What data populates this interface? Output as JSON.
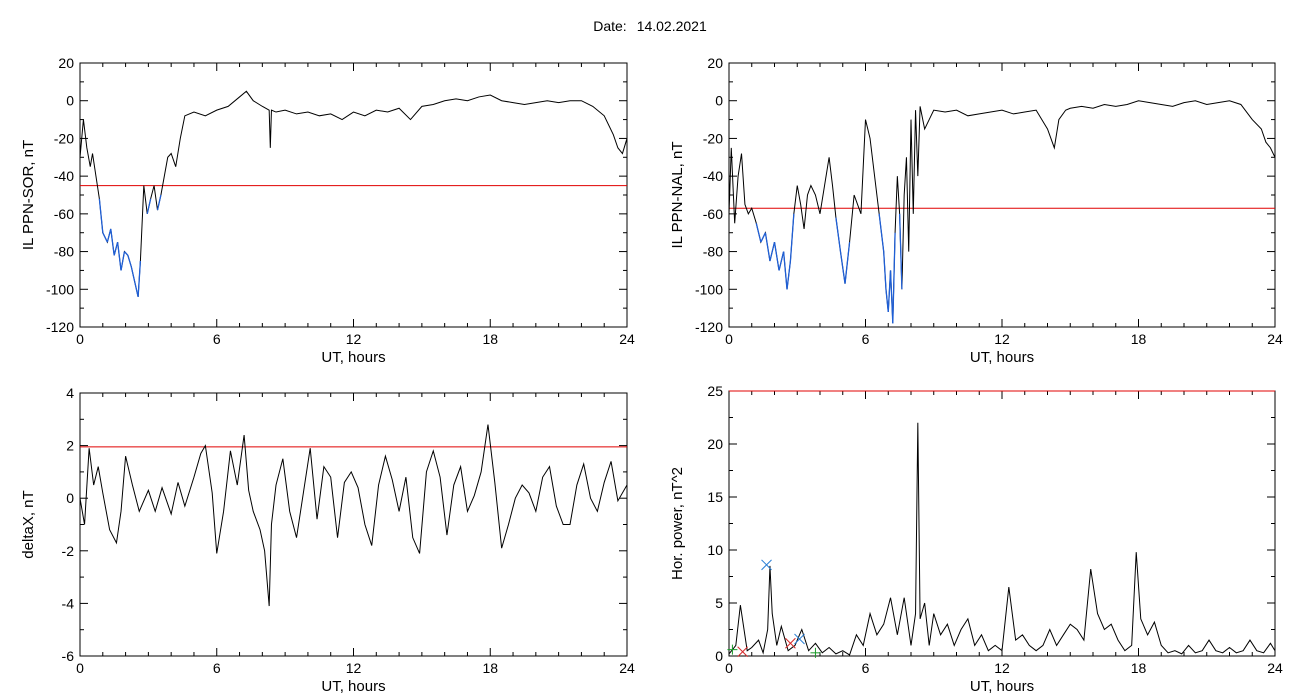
{
  "header": {
    "date_label": "Date:",
    "date_value": "14.02.2021"
  },
  "chart_data": [
    {
      "type": "line",
      "id": "sor",
      "ylabel": "IL PPN-SOR, nT",
      "xlabel": "UT, hours",
      "xlim": [
        0,
        24
      ],
      "ylim": [
        -120,
        20
      ],
      "xticks": [
        0,
        6,
        12,
        18,
        24
      ],
      "yticks": [
        -120,
        -100,
        -80,
        -60,
        -40,
        -20,
        0,
        20
      ],
      "threshold": {
        "value": -45,
        "color": "#e00000"
      },
      "series_color": "#000000",
      "highlight_color": "#1f5fd6",
      "series": [
        {
          "x": [
            0,
            0.15,
            0.3,
            0.45,
            0.55,
            0.7,
            0.85,
            1.0,
            1.2,
            1.35,
            1.5,
            1.65,
            1.8,
            1.95,
            2.1,
            2.25,
            2.4,
            2.55,
            2.65,
            2.8,
            2.95,
            3.1,
            3.25,
            3.4,
            3.55,
            3.7,
            3.85,
            4.0,
            4.2,
            4.4,
            4.6,
            5.0,
            5.5,
            6.0,
            6.5,
            7.0,
            7.3,
            7.6,
            8.0,
            8.3,
            8.35,
            8.4,
            8.6,
            9.0,
            9.5,
            10.0,
            10.5,
            11.0,
            11.5,
            12.0,
            12.5,
            13.0,
            13.5,
            14.0,
            14.5,
            15.0,
            15.5,
            16.0,
            16.5,
            17.0,
            17.5,
            18.0,
            18.5,
            19.0,
            19.5,
            20.0,
            20.5,
            21.0,
            21.5,
            22.0,
            22.5,
            23.0,
            23.4,
            23.6,
            23.8,
            24.0
          ],
          "values": [
            -30,
            -10,
            -25,
            -35,
            -28,
            -40,
            -52,
            -70,
            -75,
            -68,
            -82,
            -75,
            -90,
            -80,
            -82,
            -88,
            -96,
            -104,
            -85,
            -45,
            -60,
            -52,
            -45,
            -58,
            -50,
            -40,
            -30,
            -28,
            -35,
            -20,
            -8,
            -6,
            -8,
            -5,
            -3,
            2,
            5,
            0,
            -3,
            -5,
            -25,
            -5,
            -6,
            -5,
            -7,
            -6,
            -8,
            -7,
            -10,
            -6,
            -8,
            -5,
            -6,
            -4,
            -10,
            -3,
            -2,
            0,
            1,
            0,
            2,
            3,
            0,
            -1,
            -2,
            -1,
            0,
            -1,
            0,
            0,
            -3,
            -8,
            -18,
            -25,
            -28,
            -20
          ]
        }
      ]
    },
    {
      "type": "line",
      "id": "nal",
      "ylabel": "IL PPN-NAL, nT",
      "xlabel": "UT, hours",
      "xlim": [
        0,
        24
      ],
      "ylim": [
        -120,
        20
      ],
      "xticks": [
        0,
        6,
        12,
        18,
        24
      ],
      "yticks": [
        -120,
        -100,
        -80,
        -60,
        -40,
        -20,
        0,
        20
      ],
      "threshold": {
        "value": -57,
        "color": "#e00000"
      },
      "series_color": "#000000",
      "highlight_color": "#1f5fd6",
      "series": [
        {
          "x": [
            0,
            0.1,
            0.25,
            0.4,
            0.55,
            0.7,
            0.85,
            1.0,
            1.2,
            1.4,
            1.6,
            1.8,
            2.0,
            2.2,
            2.4,
            2.55,
            2.7,
            2.85,
            3.0,
            3.15,
            3.3,
            3.45,
            3.6,
            3.8,
            4.0,
            4.2,
            4.4,
            4.55,
            4.7,
            4.9,
            5.1,
            5.3,
            5.5,
            5.8,
            6.0,
            6.2,
            6.4,
            6.6,
            6.8,
            6.9,
            7.0,
            7.1,
            7.2,
            7.3,
            7.4,
            7.5,
            7.6,
            7.7,
            7.8,
            7.9,
            8.0,
            8.1,
            8.2,
            8.3,
            8.4,
            8.6,
            8.8,
            9.0,
            9.5,
            10.0,
            10.5,
            11.0,
            11.5,
            12.0,
            12.5,
            13.0,
            13.5,
            14.0,
            14.3,
            14.5,
            14.8,
            15.0,
            15.5,
            16.0,
            16.5,
            17.0,
            17.5,
            18.0,
            18.5,
            19.0,
            19.5,
            20.0,
            20.5,
            21.0,
            21.5,
            22.0,
            22.5,
            23.0,
            23.4,
            23.6,
            23.8,
            24.0
          ],
          "values": [
            -60,
            -25,
            -65,
            -40,
            -28,
            -55,
            -60,
            -57,
            -65,
            -75,
            -70,
            -85,
            -75,
            -90,
            -80,
            -100,
            -85,
            -60,
            -45,
            -55,
            -68,
            -50,
            -45,
            -50,
            -60,
            -45,
            -30,
            -45,
            -62,
            -80,
            -97,
            -75,
            -50,
            -60,
            -10,
            -20,
            -40,
            -60,
            -80,
            -100,
            -112,
            -90,
            -118,
            -70,
            -40,
            -60,
            -100,
            -50,
            -30,
            -80,
            -10,
            -60,
            -5,
            -40,
            -3,
            -15,
            -10,
            -5,
            -6,
            -5,
            -8,
            -7,
            -6,
            -5,
            -7,
            -6,
            -5,
            -15,
            -25,
            -10,
            -5,
            -4,
            -3,
            -4,
            -2,
            -3,
            -2,
            0,
            -1,
            -2,
            -3,
            -1,
            0,
            -2,
            -1,
            0,
            -2,
            -10,
            -15,
            -22,
            -25,
            -30
          ]
        }
      ]
    },
    {
      "type": "line",
      "id": "deltax",
      "ylabel": "deltaX, nT",
      "xlabel": "UT, hours",
      "xlim": [
        0,
        24
      ],
      "ylim": [
        -6,
        4
      ],
      "xticks": [
        0,
        6,
        12,
        18,
        24
      ],
      "yticks": [
        -6,
        -4,
        -2,
        0,
        2,
        4
      ],
      "threshold": {
        "value": 1.95,
        "color": "#e00000"
      },
      "series_color": "#000000",
      "series": [
        {
          "x": [
            0,
            0.2,
            0.4,
            0.6,
            0.8,
            1.0,
            1.3,
            1.6,
            1.8,
            2.0,
            2.3,
            2.6,
            3.0,
            3.3,
            3.6,
            4.0,
            4.3,
            4.6,
            5.0,
            5.3,
            5.5,
            5.8,
            6.0,
            6.3,
            6.6,
            6.9,
            7.2,
            7.4,
            7.6,
            7.9,
            8.1,
            8.3,
            8.4,
            8.6,
            8.9,
            9.2,
            9.5,
            9.8,
            10.1,
            10.4,
            10.7,
            11.0,
            11.3,
            11.6,
            11.9,
            12.2,
            12.5,
            12.8,
            13.1,
            13.4,
            13.7,
            14.0,
            14.3,
            14.6,
            14.9,
            15.2,
            15.5,
            15.8,
            16.1,
            16.4,
            16.7,
            17.0,
            17.3,
            17.6,
            17.9,
            18.2,
            18.5,
            18.8,
            19.1,
            19.4,
            19.7,
            20.0,
            20.3,
            20.6,
            20.9,
            21.2,
            21.5,
            21.8,
            22.1,
            22.4,
            22.7,
            23.0,
            23.3,
            23.6,
            24.0
          ],
          "values": [
            0,
            -1.0,
            1.9,
            0.5,
            1.2,
            0.2,
            -1.2,
            -1.7,
            -0.5,
            1.6,
            0.5,
            -0.5,
            0.3,
            -0.5,
            0.4,
            -0.6,
            0.6,
            -0.3,
            0.8,
            1.7,
            2.0,
            0.2,
            -2.1,
            -0.5,
            1.8,
            0.5,
            2.4,
            0.3,
            -0.5,
            -1.2,
            -2.0,
            -4.1,
            -1.0,
            0.5,
            1.5,
            -0.5,
            -1.5,
            0.2,
            1.9,
            -0.8,
            1.2,
            0.8,
            -1.5,
            0.6,
            1.0,
            0.4,
            -1.0,
            -1.8,
            0.5,
            1.6,
            0.7,
            -0.5,
            0.8,
            -1.5,
            -2.1,
            1.0,
            1.8,
            0.8,
            -1.4,
            0.5,
            1.2,
            -0.5,
            0.1,
            1.0,
            2.8,
            0.6,
            -1.9,
            -1.0,
            0.0,
            0.5,
            0.2,
            -0.5,
            0.8,
            1.2,
            -0.3,
            -1.0,
            -1.0,
            0.5,
            1.3,
            0.0,
            -0.5,
            0.6,
            1.4,
            -0.1,
            0.5
          ]
        }
      ]
    },
    {
      "type": "line",
      "id": "power",
      "ylabel": "Hor. power, nT^2",
      "xlabel": "UT, hours",
      "xlim": [
        0,
        24
      ],
      "ylim": [
        0,
        25
      ],
      "xticks": [
        0,
        6,
        12,
        18,
        24
      ],
      "yticks": [
        0,
        5,
        10,
        15,
        20,
        25
      ],
      "threshold": {
        "value": 25,
        "color": "#e00000"
      },
      "series_color": "#000000",
      "series": [
        {
          "x": [
            0,
            0.3,
            0.5,
            0.8,
            1.0,
            1.3,
            1.5,
            1.7,
            1.8,
            1.9,
            2.1,
            2.3,
            2.6,
            2.9,
            3.2,
            3.5,
            3.8,
            4.1,
            4.4,
            4.7,
            5.0,
            5.3,
            5.6,
            5.9,
            6.2,
            6.5,
            6.8,
            7.1,
            7.4,
            7.7,
            8.0,
            8.2,
            8.3,
            8.4,
            8.6,
            8.8,
            9.0,
            9.3,
            9.6,
            9.9,
            10.2,
            10.5,
            10.8,
            11.1,
            11.4,
            11.7,
            12.0,
            12.3,
            12.6,
            12.9,
            13.2,
            13.5,
            13.8,
            14.1,
            14.4,
            14.7,
            15.0,
            15.3,
            15.6,
            15.9,
            16.2,
            16.5,
            16.8,
            17.1,
            17.4,
            17.7,
            17.9,
            18.1,
            18.4,
            18.7,
            19.0,
            19.3,
            19.6,
            19.9,
            20.2,
            20.5,
            20.8,
            21.1,
            21.4,
            21.7,
            22.0,
            22.3,
            22.6,
            22.9,
            23.2,
            23.5,
            23.8,
            24.0
          ],
          "values": [
            0.2,
            1.0,
            4.8,
            0.5,
            0.8,
            1.5,
            0.3,
            2.5,
            8.5,
            4.0,
            1.0,
            2.8,
            0.5,
            1.0,
            2.5,
            0.5,
            1.2,
            0.3,
            0.8,
            0.2,
            0.5,
            0.1,
            2.0,
            1.0,
            4.0,
            2.0,
            3.0,
            5.5,
            2.0,
            5.5,
            1.0,
            4.0,
            22.0,
            3.5,
            5.0,
            1.0,
            4.0,
            2.0,
            3.0,
            1.0,
            2.5,
            3.5,
            1.0,
            2.0,
            0.5,
            1.0,
            0.5,
            6.5,
            1.5,
            2.0,
            1.0,
            0.5,
            1.0,
            2.5,
            1.0,
            2.0,
            3.0,
            2.5,
            1.5,
            8.2,
            4.0,
            2.5,
            3.0,
            1.5,
            0.5,
            1.0,
            9.8,
            3.5,
            2.0,
            3.2,
            1.0,
            0.3,
            0.5,
            0.2,
            1.0,
            0.3,
            0.5,
            1.5,
            0.5,
            0.3,
            0.8,
            0.3,
            0.5,
            1.5,
            0.5,
            0.3,
            1.2,
            0.5
          ],
          "name": ""
        }
      ],
      "markers": [
        {
          "x": 1.65,
          "y": 8.6,
          "symbol": "x",
          "color": "#2a7fd6"
        },
        {
          "x": 3.1,
          "y": 1.6,
          "symbol": "x",
          "color": "#2a7fd6"
        },
        {
          "x": 2.7,
          "y": 1.2,
          "symbol": "x",
          "color": "#d62a2a"
        },
        {
          "x": 0.6,
          "y": 0.4,
          "symbol": "x",
          "color": "#d62a2a"
        },
        {
          "x": 0.15,
          "y": 0.6,
          "symbol": "+",
          "color": "#1a9a2a"
        },
        {
          "x": 3.8,
          "y": 0.3,
          "symbol": "+",
          "color": "#1a9a2a"
        }
      ]
    }
  ]
}
